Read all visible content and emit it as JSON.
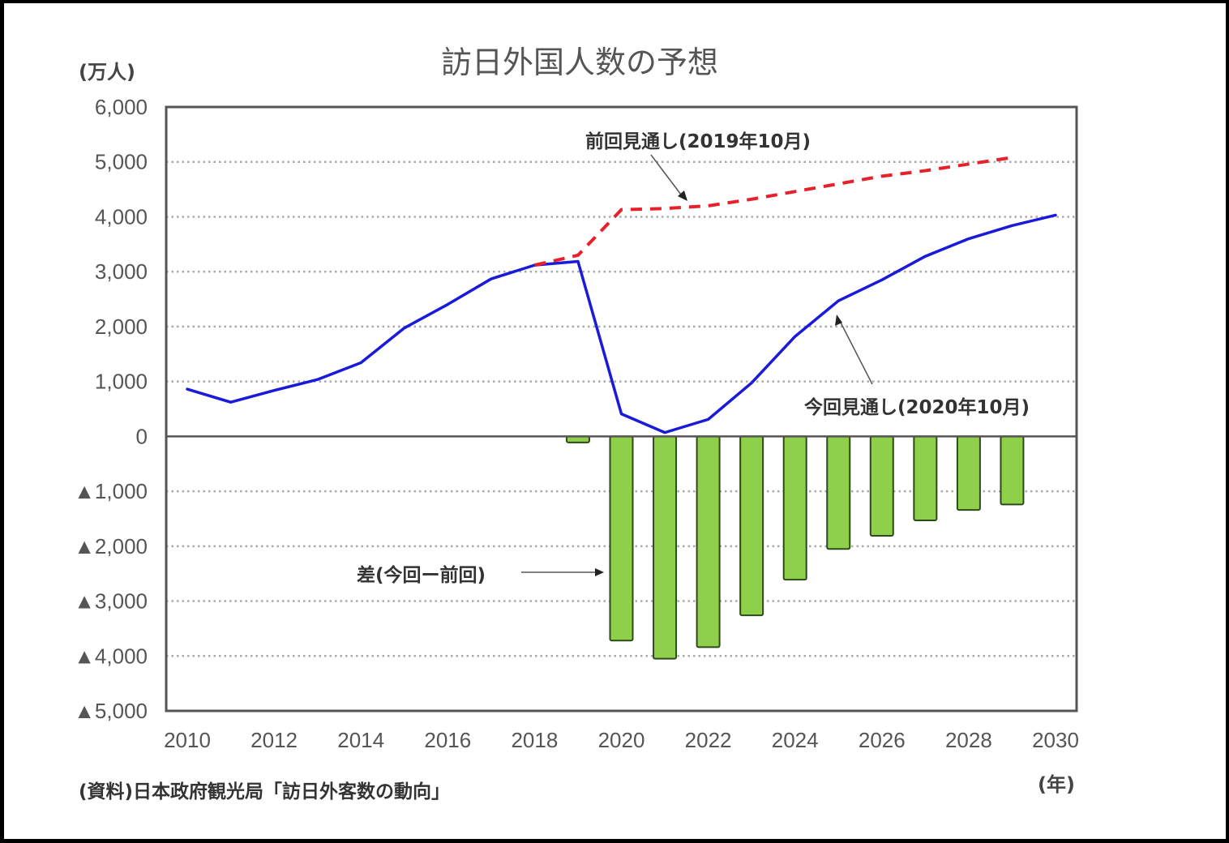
{
  "chart_data": {
    "type": "line+bar",
    "title": "訪日外国人数の予想",
    "ylabel": "(万人)",
    "xlabel": "(年)",
    "source": "(資料)日本政府観光局「訪日外客数の動向」",
    "ylim": [
      -5000,
      6000
    ],
    "grid": true,
    "grid_style": "dotted",
    "y_ticks": [
      {
        "value": 6000,
        "label": "6,000"
      },
      {
        "value": 5000,
        "label": "5,000"
      },
      {
        "value": 4000,
        "label": "4,000"
      },
      {
        "value": 3000,
        "label": "3,000"
      },
      {
        "value": 2000,
        "label": "2,000"
      },
      {
        "value": 1000,
        "label": "1,000"
      },
      {
        "value": 0,
        "label": "0"
      },
      {
        "value": -1000,
        "label": "▲1,000"
      },
      {
        "value": -2000,
        "label": "▲2,000"
      },
      {
        "value": -3000,
        "label": "▲3,000"
      },
      {
        "value": -4000,
        "label": "▲4,000"
      },
      {
        "value": -5000,
        "label": "▲5,000"
      }
    ],
    "xlim": [
      2010,
      2030
    ],
    "x_ticks": [
      "2010",
      "2012",
      "2014",
      "2016",
      "2018",
      "2020",
      "2022",
      "2024",
      "2026",
      "2028",
      "2030"
    ],
    "series": [
      {
        "name": "今回見通し(2020年10月)",
        "type": "line",
        "style": "solid",
        "color": "#1a1adb",
        "x": [
          2010,
          2011,
          2012,
          2013,
          2014,
          2015,
          2016,
          2017,
          2018,
          2019,
          2020,
          2021,
          2022,
          2023,
          2024,
          2025,
          2026,
          2027,
          2028,
          2029,
          2030
        ],
        "values": [
          861,
          622,
          836,
          1036,
          1341,
          1974,
          2404,
          2869,
          3119,
          3188,
          410,
          70,
          310,
          975,
          1820,
          2470,
          2850,
          3280,
          3600,
          3840,
          4030
        ]
      },
      {
        "name": "前回見通し(2019年10月)",
        "type": "line",
        "style": "dashed",
        "color": "#e8202a",
        "x": [
          2018,
          2019,
          2020,
          2021,
          2022,
          2023,
          2024,
          2025,
          2026,
          2027,
          2028,
          2029
        ],
        "values": [
          3119,
          3300,
          4130,
          4150,
          4200,
          4320,
          4460,
          4600,
          4740,
          4840,
          4960,
          5080
        ]
      },
      {
        "name": "差(今回−前回)",
        "type": "bar",
        "color": "#8ed04a",
        "x": [
          2019,
          2020,
          2021,
          2022,
          2023,
          2024,
          2025,
          2026,
          2027,
          2028,
          2029
        ],
        "values": [
          -110,
          -3720,
          -4050,
          -3840,
          -3260,
          -2610,
          -2050,
          -1810,
          -1530,
          -1340,
          -1240
        ]
      }
    ],
    "annotations": [
      {
        "text": "前回見通し(2019年10月)",
        "points_to": "前回見通し",
        "at_x": 2021
      },
      {
        "text": "今回見通し(2020年10月)",
        "points_to": "今回見通し",
        "at_x": 2025
      },
      {
        "text": "差(今回ー前回)",
        "points_to": "差",
        "at_x": 2020
      }
    ]
  }
}
